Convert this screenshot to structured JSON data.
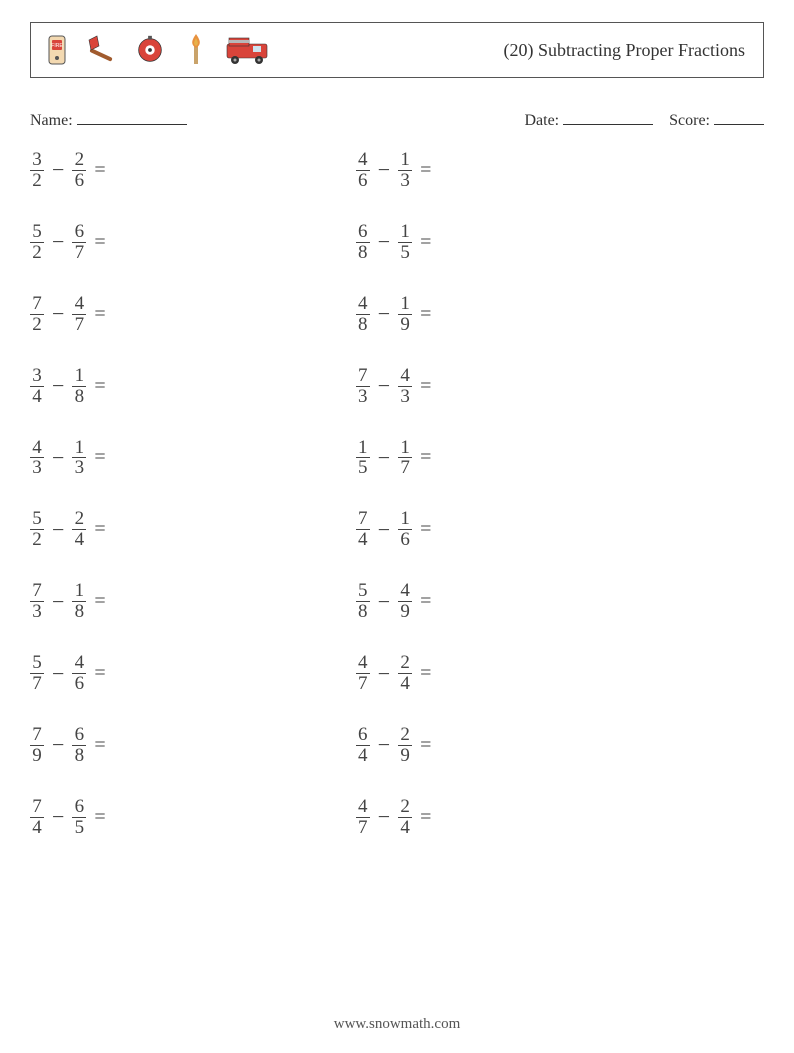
{
  "header": {
    "title": "(20) Subtracting Proper Fractions",
    "icons": [
      "phone-fire-icon",
      "axe-icon",
      "alarm-bell-icon",
      "match-flame-icon",
      "fire-truck-icon"
    ]
  },
  "info": {
    "name_label": "Name:",
    "date_label": "Date:",
    "score_label": "Score:"
  },
  "problems": {
    "col1": [
      {
        "a_num": "3",
        "a_den": "2",
        "b_num": "2",
        "b_den": "6"
      },
      {
        "a_num": "5",
        "a_den": "2",
        "b_num": "6",
        "b_den": "7"
      },
      {
        "a_num": "7",
        "a_den": "2",
        "b_num": "4",
        "b_den": "7"
      },
      {
        "a_num": "3",
        "a_den": "4",
        "b_num": "1",
        "b_den": "8"
      },
      {
        "a_num": "4",
        "a_den": "3",
        "b_num": "1",
        "b_den": "3"
      },
      {
        "a_num": "5",
        "a_den": "2",
        "b_num": "2",
        "b_den": "4"
      },
      {
        "a_num": "7",
        "a_den": "3",
        "b_num": "1",
        "b_den": "8"
      },
      {
        "a_num": "5",
        "a_den": "7",
        "b_num": "4",
        "b_den": "6"
      },
      {
        "a_num": "7",
        "a_den": "9",
        "b_num": "6",
        "b_den": "8"
      },
      {
        "a_num": "7",
        "a_den": "4",
        "b_num": "6",
        "b_den": "5"
      }
    ],
    "col2": [
      {
        "a_num": "4",
        "a_den": "6",
        "b_num": "1",
        "b_den": "3"
      },
      {
        "a_num": "6",
        "a_den": "8",
        "b_num": "1",
        "b_den": "5"
      },
      {
        "a_num": "4",
        "a_den": "8",
        "b_num": "1",
        "b_den": "9"
      },
      {
        "a_num": "7",
        "a_den": "3",
        "b_num": "4",
        "b_den": "3"
      },
      {
        "a_num": "1",
        "a_den": "5",
        "b_num": "1",
        "b_den": "7"
      },
      {
        "a_num": "7",
        "a_den": "4",
        "b_num": "1",
        "b_den": "6"
      },
      {
        "a_num": "5",
        "a_den": "8",
        "b_num": "4",
        "b_den": "9"
      },
      {
        "a_num": "4",
        "a_den": "7",
        "b_num": "2",
        "b_den": "4"
      },
      {
        "a_num": "6",
        "a_den": "4",
        "b_num": "2",
        "b_den": "9"
      },
      {
        "a_num": "4",
        "a_den": "7",
        "b_num": "2",
        "b_den": "4"
      }
    ]
  },
  "symbols": {
    "minus": "−",
    "equals": "="
  },
  "footer": "www.snowmath.com",
  "colors": {
    "text": "#333333",
    "border": "#555555",
    "red": "#d9443a",
    "orange": "#e8913e",
    "yellow": "#e7b24a",
    "brown": "#8a5a3b",
    "gray": "#b7b7b7"
  }
}
